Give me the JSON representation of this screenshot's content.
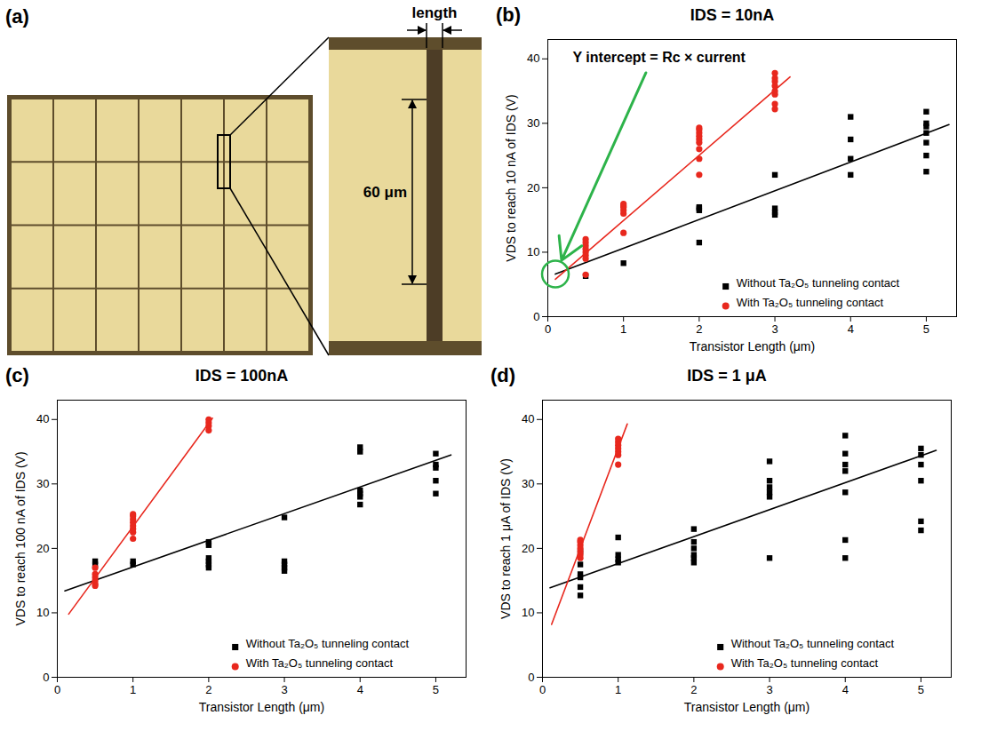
{
  "image_panel": {
    "letter": "(a)",
    "dimension_label": "length",
    "scale_label": "60 μm"
  },
  "chart_data": [
    {
      "type": "scatter",
      "letter": "(b)",
      "title": "IDS = 10nA",
      "x_label": "Transistor Length (μm)",
      "y_label": "VDS to reach 10 nA of IDS (V)",
      "annotation": "Y intercept = Rc × current",
      "xlim": [
        0,
        5.4
      ],
      "xticks": [
        0,
        1,
        2,
        3,
        4,
        5
      ],
      "ylim": [
        0,
        43
      ],
      "yticks": [
        0,
        10,
        20,
        30,
        40
      ],
      "legend": "bottom-right",
      "series": [
        {
          "name": "Without Ta₂O₅ tunneling contact",
          "color": "#000000",
          "marker": "square",
          "x": [
            0.5,
            1,
            2,
            2,
            2,
            2,
            3,
            3,
            3,
            3,
            4,
            4,
            4,
            4,
            5,
            5,
            5,
            5,
            5,
            5,
            5
          ],
          "values": [
            6.3,
            8.3,
            11.5,
            16.5,
            16.8,
            17,
            15.8,
            16.2,
            16.8,
            22,
            22,
            24.5,
            27.5,
            31,
            22.5,
            25,
            27,
            28.5,
            29.5,
            30,
            31.8
          ],
          "fit": {
            "x": [
              0.1,
              5.3
            ],
            "values": [
              6.6,
              29.8
            ]
          }
        },
        {
          "name": "With Ta₂O₅ tunneling contact",
          "color": "#e8281e",
          "marker": "circle",
          "x": [
            0.5,
            0.5,
            0.5,
            0.5,
            0.5,
            0.5,
            0.5,
            0.5,
            1,
            1,
            1,
            1,
            1,
            1,
            2,
            2,
            2,
            2,
            2,
            2,
            2,
            2,
            2,
            3,
            3,
            3,
            3,
            3,
            3,
            3,
            3
          ],
          "values": [
            6.5,
            9,
            9.5,
            10,
            10.5,
            11,
            11.5,
            12,
            13,
            16,
            16.5,
            17,
            17.2,
            17.5,
            22,
            24.5,
            26,
            27,
            27.5,
            28,
            28.5,
            29,
            29.3,
            32.2,
            33,
            34.5,
            35,
            35.8,
            36.5,
            37,
            37.8
          ],
          "fit": {
            "x": [
              0.1,
              3.2
            ],
            "values": [
              5.8,
              37.2
            ]
          }
        }
      ]
    },
    {
      "type": "scatter",
      "letter": "(c)",
      "title": "IDS = 100nA",
      "x_label": "Transistor Length (μm)",
      "y_label": "VDS to reach 100 nA of IDS (V)",
      "xlim": [
        0,
        5.4
      ],
      "xticks": [
        0,
        1,
        2,
        3,
        4,
        5
      ],
      "ylim": [
        0,
        43
      ],
      "yticks": [
        0,
        10,
        20,
        30,
        40
      ],
      "legend": "bottom-right",
      "series": [
        {
          "name": "Without Ta₂O₅ tunneling contact",
          "color": "#000000",
          "marker": "square",
          "x": [
            0.5,
            0.5,
            1,
            1,
            2,
            2,
            2,
            2,
            2,
            2,
            3,
            3,
            3,
            3,
            3,
            4,
            4,
            4,
            4,
            4,
            4,
            5,
            5,
            5,
            5,
            5
          ],
          "values": [
            17.5,
            18,
            17.5,
            18,
            17,
            17.5,
            18,
            18.5,
            20.5,
            21,
            16.5,
            17,
            17.5,
            18,
            24.8,
            26.8,
            28,
            28.5,
            29,
            35,
            35.7,
            28.5,
            30.5,
            32.5,
            33,
            34.7
          ],
          "fit": {
            "x": [
              0.1,
              5.2
            ],
            "values": [
              13.4,
              34.5
            ]
          }
        },
        {
          "name": "With Ta₂O₅ tunneling contact",
          "color": "#e8281e",
          "marker": "circle",
          "x": [
            0.5,
            0.5,
            0.5,
            0.5,
            0.5,
            0.5,
            1,
            1,
            1,
            1,
            1,
            1,
            1,
            1,
            2,
            2,
            2,
            2
          ],
          "values": [
            14.2,
            14.5,
            15,
            15.5,
            16,
            17,
            21.5,
            22.5,
            23,
            23.5,
            24,
            24.5,
            25,
            25.3,
            38.3,
            39,
            39.5,
            40
          ],
          "fit": {
            "x": [
              0.15,
              2.05
            ],
            "values": [
              9.8,
              40.2
            ]
          }
        }
      ]
    },
    {
      "type": "scatter",
      "letter": "(d)",
      "title": "IDS = 1 μA",
      "x_label": "Transistor Length (μm)",
      "y_label": "VDS to reach 1 μA of IDS (V)",
      "xlim": [
        0,
        5.4
      ],
      "xticks": [
        0,
        1,
        2,
        3,
        4,
        5
      ],
      "ylim": [
        0,
        43
      ],
      "yticks": [
        0,
        10,
        20,
        30,
        40
      ],
      "legend": "bottom-right",
      "series": [
        {
          "name": "Without Ta₂O₅ tunneling contact",
          "color": "#000000",
          "marker": "square",
          "x": [
            0.5,
            0.5,
            0.5,
            0.5,
            0.5,
            0.5,
            1,
            1,
            1,
            1,
            2,
            2,
            2,
            2,
            2,
            2,
            3,
            3,
            3,
            3,
            3,
            3,
            4,
            4,
            4,
            4,
            4,
            4,
            4,
            5,
            5,
            5,
            5,
            5,
            5
          ],
          "values": [
            12.7,
            14,
            15.5,
            16,
            17.5,
            19.5,
            17.8,
            18.3,
            19,
            21.7,
            17.8,
            18.5,
            19,
            20,
            21,
            23,
            18.5,
            28,
            28.7,
            29.5,
            30.5,
            33.5,
            18.5,
            21.3,
            28.7,
            32,
            33,
            34.7,
            37.5,
            22.8,
            24.2,
            30.5,
            33,
            34.5,
            35.5
          ],
          "fit": {
            "x": [
              0.1,
              5.2
            ],
            "values": [
              13.9,
              35.2
            ]
          }
        },
        {
          "name": "With Ta₂O₅ tunneling contact",
          "color": "#e8281e",
          "marker": "circle",
          "x": [
            0.5,
            0.5,
            0.5,
            0.5,
            0.5,
            0.5,
            0.5,
            1,
            1,
            1,
            1,
            1,
            1,
            1
          ],
          "values": [
            18.5,
            19,
            19.5,
            20,
            20.5,
            21,
            21.3,
            33,
            34.5,
            35,
            35.5,
            36,
            36.5,
            37
          ],
          "fit": {
            "x": [
              0.12,
              1.12
            ],
            "values": [
              8.2,
              39.3
            ]
          }
        }
      ]
    }
  ]
}
